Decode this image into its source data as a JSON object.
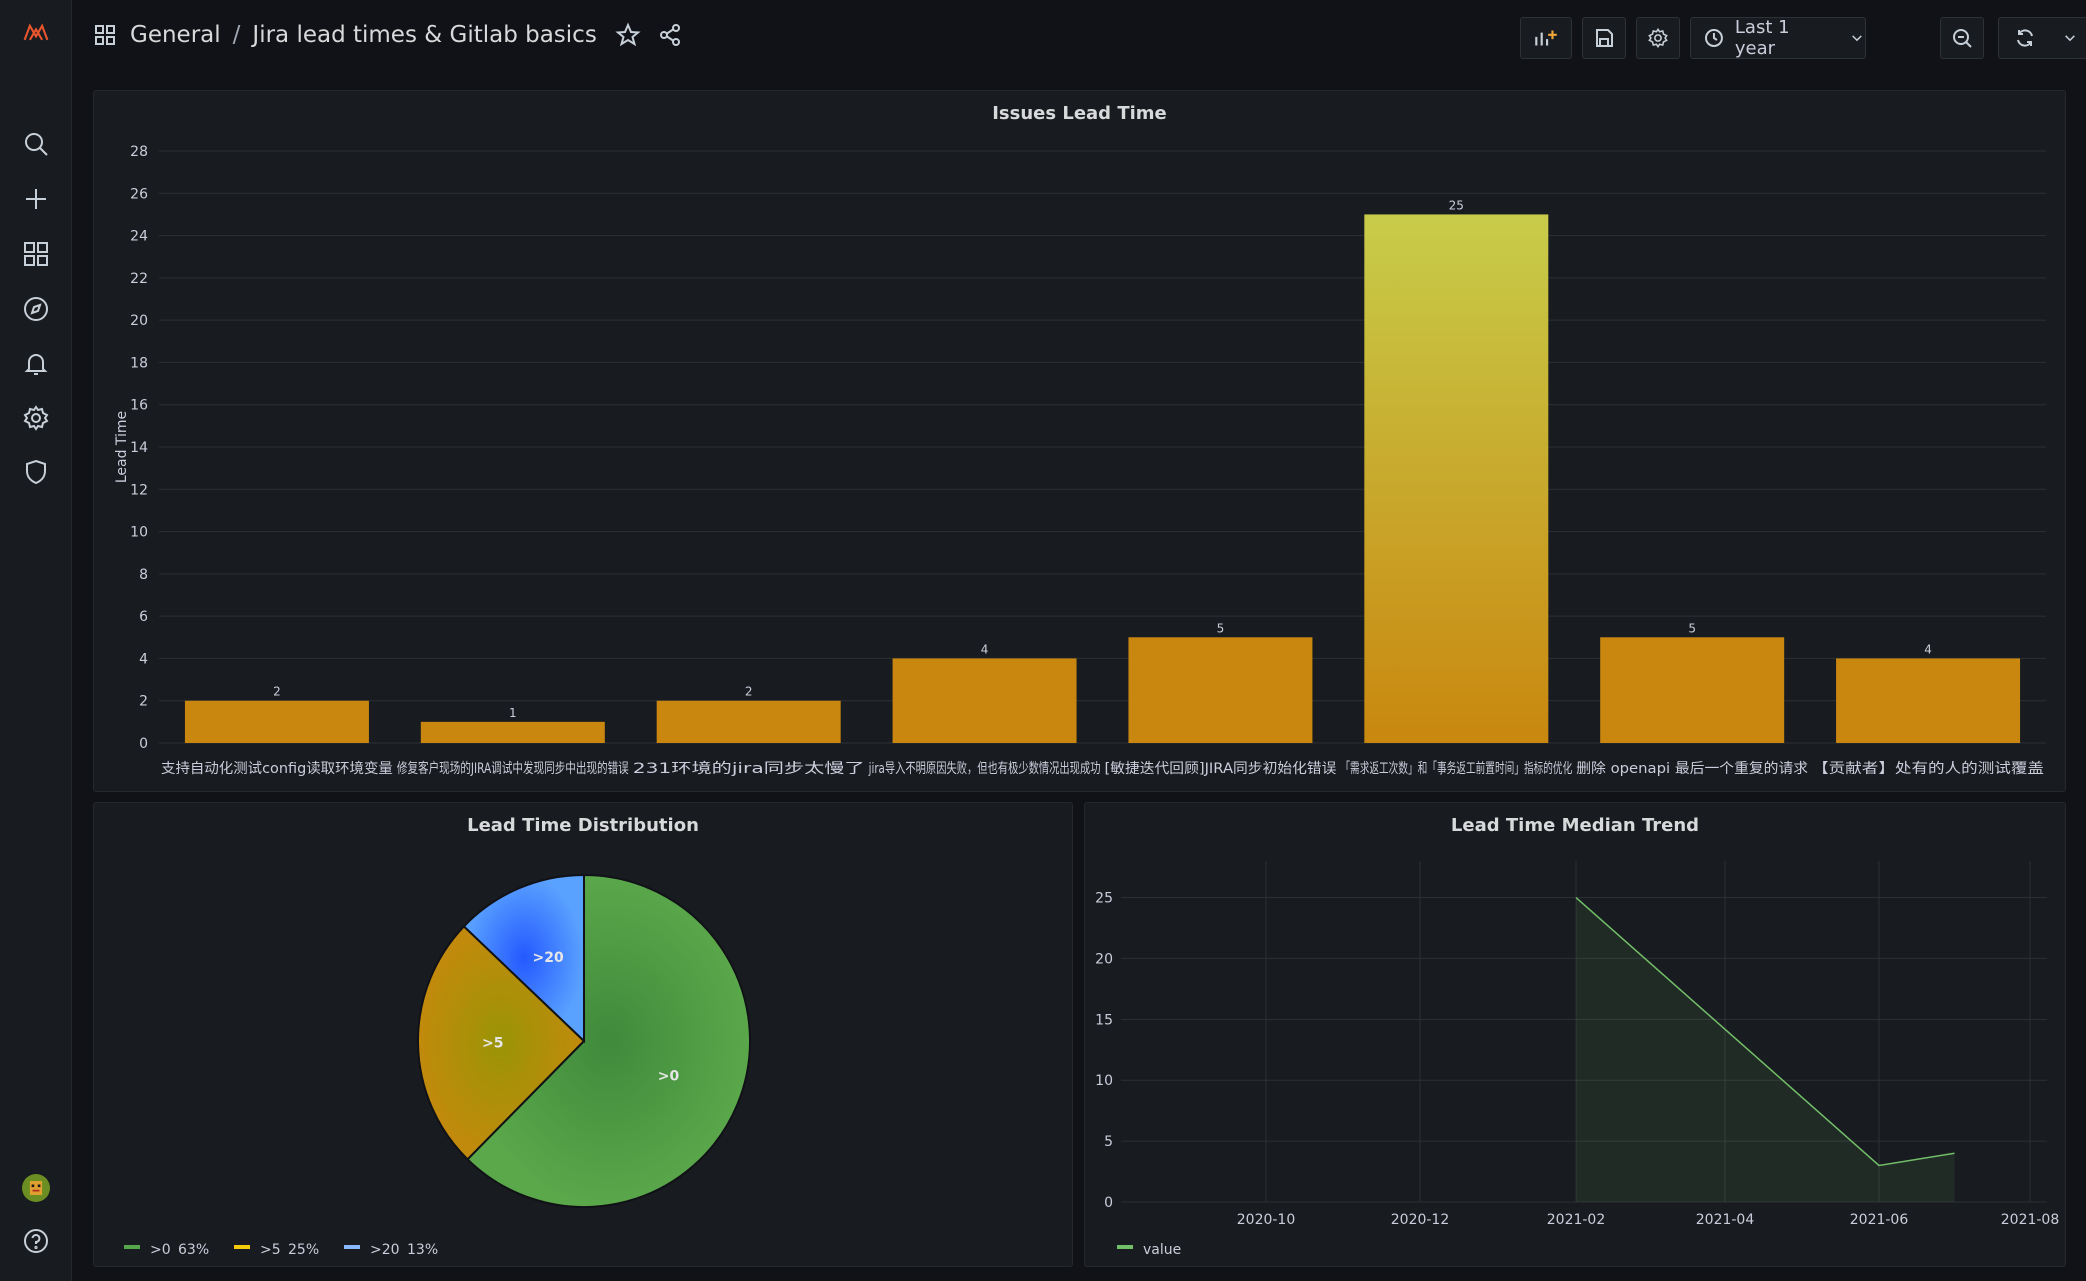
{
  "sidebar": {
    "icons": [
      "logo-icon",
      "search-icon",
      "plus-icon",
      "dashboards-icon",
      "explore-icon",
      "alert-bell-icon",
      "gear-icon",
      "shield-icon",
      "avatar",
      "help-icon"
    ]
  },
  "header": {
    "folder": "General",
    "separator": "/",
    "dashboard_title": "Jira lead times & Gitlab basics",
    "time_range": "Last 1 year"
  },
  "colors": {
    "bar_bottom": "#c9870f",
    "bar_top_highlight": "#c8cc4a",
    "pie_green": "#56a64b",
    "pie_yellow": "#b8900a",
    "pie_blue": "#3d7eff",
    "line_green": "#73bf69"
  },
  "panels": {
    "lead_time": {
      "title": "Issues Lead Time",
      "chart_data": {
        "type": "bar",
        "title": "Issues Lead Time",
        "ylabel": "Lead Time",
        "ylim": [
          0,
          28
        ],
        "yticks": [
          0,
          2,
          4,
          6,
          8,
          10,
          12,
          14,
          16,
          18,
          20,
          22,
          24,
          26,
          28
        ],
        "categories": [
          "支持自动化测试config读取环境变量",
          "修复客户现场的JIRA调试中发现同步中出现的错误",
          "231环境的jira同步太慢了",
          "jira导入不明原因失败，但也有极少数情况出现成功",
          "[敏捷迭代回顾]JIRA同步初始化错误",
          "「需求返工次数」和「事务返工前置时间」指标的优化",
          "删除 openapi 最后一个重复的请求",
          "【贡献者】处有的人的测试覆盖"
        ],
        "values": [
          2,
          1,
          2,
          4,
          5,
          25,
          5,
          4
        ]
      }
    },
    "distribution": {
      "title": "Lead Time Distribution",
      "chart_data": {
        "type": "pie",
        "title": "Lead Time Distribution",
        "slices": [
          {
            "label": ">0",
            "percent": 63,
            "legend": ">0",
            "legend_pct": "63%"
          },
          {
            "label": ">5",
            "percent": 25,
            "legend": ">5",
            "legend_pct": "25%"
          },
          {
            "label": ">20",
            "percent": 13,
            "legend": ">20",
            "legend_pct": "13%"
          }
        ]
      }
    },
    "trend": {
      "title": "Lead Time Median Trend",
      "chart_data": {
        "type": "area",
        "title": "Lead Time Median Trend",
        "ylim": [
          0,
          28
        ],
        "yticks": [
          0,
          5,
          10,
          15,
          20,
          25
        ],
        "xticks": [
          "2020-10",
          "2020-12",
          "2021-02",
          "2021-04",
          "2021-06",
          "2021-08"
        ],
        "series": [
          {
            "name": "value",
            "x": [
              "2021-02",
              "2021-06",
              "2021-07"
            ],
            "values": [
              25,
              3,
              4
            ]
          }
        ]
      }
    }
  }
}
